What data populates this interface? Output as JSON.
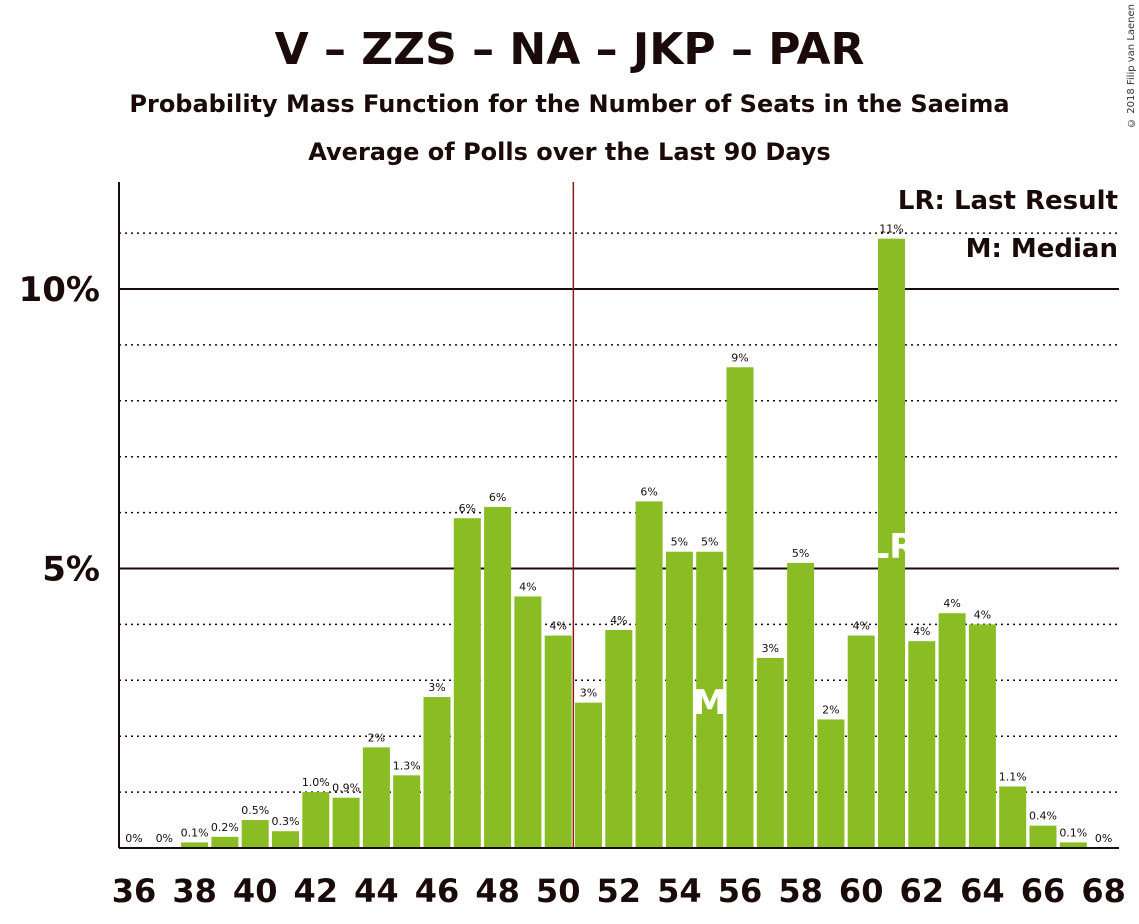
{
  "chart_data": {
    "type": "bar",
    "title": "V – ZZS – NA – JKP – PAR",
    "subtitle": "Probability Mass Function for the Number of Seats in the Saeima",
    "subtitle2": "Average of Polls over the Last 90 Days",
    "copyright": "© 2018 Filip van Laenen",
    "x": [
      36,
      37,
      38,
      39,
      40,
      41,
      42,
      43,
      44,
      45,
      46,
      47,
      48,
      49,
      50,
      51,
      52,
      53,
      54,
      55,
      56,
      57,
      58,
      59,
      60,
      61,
      62,
      63,
      64,
      65,
      66,
      67,
      68
    ],
    "values": [
      0,
      0,
      0.1,
      0.2,
      0.5,
      0.3,
      1.0,
      0.9,
      1.8,
      1.3,
      2.7,
      5.9,
      6.1,
      4.5,
      3.8,
      2.6,
      3.9,
      6.2,
      5.3,
      5.3,
      8.6,
      3.4,
      5.1,
      2.3,
      3.8,
      10.9,
      3.7,
      4.2,
      4.0,
      1.1,
      0.4,
      0.1,
      0
    ],
    "labels": [
      "0%",
      "0%",
      "0.1%",
      "0.2%",
      "0.5%",
      "0.3%",
      "1.0%",
      "0.9%",
      "2%",
      "1.3%",
      "3%",
      "6%",
      "6%",
      "4%",
      "4%",
      "3%",
      "4%",
      "6%",
      "5%",
      "5%",
      "9%",
      "3%",
      "5%",
      "2%",
      "4%",
      "11%",
      "4%",
      "4%",
      "4%",
      "1.1%",
      "0.4%",
      "0.1%",
      "0%"
    ],
    "x_ticks": [
      "36",
      "38",
      "40",
      "42",
      "44",
      "46",
      "48",
      "50",
      "52",
      "54",
      "56",
      "58",
      "60",
      "62",
      "64",
      "66",
      "68"
    ],
    "y_ticks": [
      "5%",
      "10%"
    ],
    "ylim": [
      0,
      12
    ],
    "majority_line_x": 50.5,
    "last_result_seat": 61,
    "median_seat": 55,
    "last_result_marker": "LR",
    "median_marker": "M",
    "legend": [
      "LR: Last Result",
      "M: Median"
    ],
    "colors": {
      "bar": "#8abd24",
      "majority": "#8b1a1a",
      "text": "#1a0a0a"
    }
  }
}
